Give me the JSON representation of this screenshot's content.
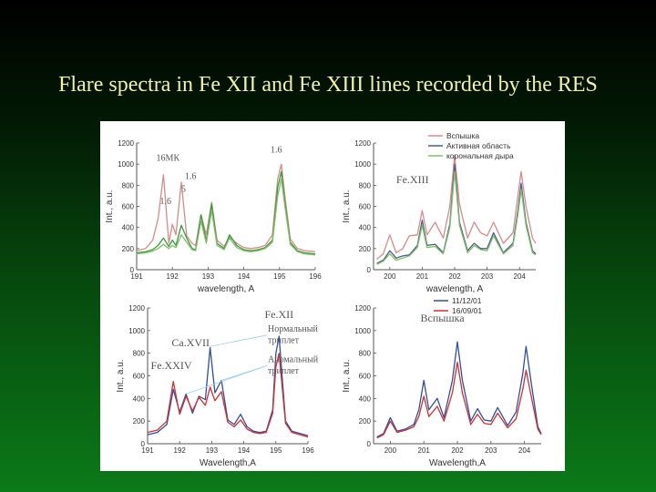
{
  "slide": {
    "title": "Flare spectra in Fe XII and Fe XIII lines recorded by the RES"
  },
  "colors": {
    "background_top": "#000000",
    "background_bottom": "#0b7a18",
    "title_text": "#f2f2a0",
    "flare": "#d98a8a",
    "active_region": "#4a5f86",
    "coronal_hole": "#7fbf6a",
    "green_series": "#3a9a3a",
    "series_11_12_01": "#2f4f9f",
    "series_16_09_01": "#d23030"
  },
  "chart_data": [
    {
      "type": "line",
      "panel": "top-left",
      "title": "",
      "xlabel": "wavelength, A",
      "ylabel": "Int., a.u.",
      "xlim": [
        191,
        196
      ],
      "ylim": [
        0,
        1200
      ],
      "xticks": [
        191,
        192,
        193,
        194,
        195,
        196
      ],
      "yticks": [
        0,
        200,
        400,
        600,
        800,
        1000,
        1200
      ],
      "annotations": [
        {
          "text": "16МК",
          "x": 191.55,
          "y": 1030
        },
        {
          "text": "1.6",
          "x": 192.35,
          "y": 860
        },
        {
          "text": "1.6",
          "x": 191.65,
          "y": 620
        },
        {
          "text": "5",
          "x": 192.25,
          "y": 740
        },
        {
          "text": "1.6",
          "x": 194.75,
          "y": 1110
        }
      ],
      "series": [
        {
          "color_key": "flare",
          "x": [
            191.0,
            191.25,
            191.45,
            191.6,
            191.75,
            191.9,
            192.0,
            192.1,
            192.25,
            192.4,
            192.55,
            192.65,
            192.8,
            192.95,
            193.1,
            193.25,
            193.45,
            193.6,
            193.8,
            194.0,
            194.2,
            194.4,
            194.6,
            194.8,
            194.95,
            195.05,
            195.15,
            195.3,
            195.5,
            195.7,
            196.0
          ],
          "y": [
            180,
            200,
            280,
            480,
            900,
            250,
            430,
            330,
            830,
            320,
            250,
            230,
            520,
            330,
            640,
            280,
            220,
            310,
            250,
            210,
            200,
            210,
            230,
            330,
            860,
            1000,
            700,
            290,
            200,
            180,
            170
          ]
        },
        {
          "color_key": "green_series",
          "x": [
            191.0,
            191.25,
            191.45,
            191.6,
            191.75,
            191.9,
            192.0,
            192.1,
            192.25,
            192.4,
            192.55,
            192.65,
            192.8,
            192.95,
            193.1,
            193.25,
            193.45,
            193.6,
            193.8,
            194.0,
            194.2,
            194.4,
            194.6,
            194.8,
            194.95,
            195.05,
            195.15,
            195.3,
            195.5,
            195.7,
            196.0
          ],
          "y": [
            160,
            170,
            190,
            230,
            300,
            220,
            280,
            230,
            420,
            300,
            200,
            190,
            520,
            270,
            620,
            250,
            200,
            330,
            230,
            190,
            180,
            190,
            210,
            280,
            780,
            930,
            640,
            260,
            180,
            160,
            150
          ]
        },
        {
          "color_key": "coronal_hole",
          "x": [
            191.0,
            191.25,
            191.45,
            191.6,
            191.75,
            191.9,
            192.0,
            192.1,
            192.25,
            192.4,
            192.55,
            192.65,
            192.8,
            192.95,
            193.1,
            193.25,
            193.45,
            193.6,
            193.8,
            194.0,
            194.2,
            194.4,
            194.6,
            194.8,
            194.95,
            195.05,
            195.15,
            195.3,
            195.5,
            195.7,
            196.0
          ],
          "y": [
            150,
            160,
            175,
            200,
            240,
            200,
            230,
            210,
            330,
            260,
            190,
            180,
            460,
            250,
            560,
            230,
            190,
            300,
            210,
            180,
            170,
            180,
            200,
            260,
            700,
            860,
            600,
            240,
            170,
            150,
            140
          ]
        }
      ]
    },
    {
      "type": "line",
      "panel": "top-right",
      "title": "",
      "xlabel": "wavelength, A",
      "ylabel": "Int., a.u.",
      "xlim": [
        199.5,
        204.5
      ],
      "ylim": [
        0,
        1200
      ],
      "xticks": [
        200,
        201,
        202,
        203,
        204
      ],
      "yticks": [
        0,
        200,
        400,
        600,
        800,
        1000,
        1200
      ],
      "annotations": [
        {
          "text": "Fe.XIII",
          "x": 200.2,
          "y": 820
        }
      ],
      "legend": {
        "position": "top-right",
        "entries": [
          "Вспышка",
          "Активная область",
          "корональная дыра"
        ]
      },
      "series": [
        {
          "name": "Вспышка",
          "color_key": "flare",
          "x": [
            199.6,
            199.8,
            200.0,
            200.2,
            200.4,
            200.6,
            200.85,
            201.0,
            201.15,
            201.4,
            201.65,
            201.85,
            202.0,
            202.15,
            202.4,
            202.6,
            202.8,
            203.0,
            203.2,
            203.5,
            203.8,
            203.95,
            204.05,
            204.2,
            204.4,
            204.5
          ],
          "y": [
            100,
            150,
            330,
            160,
            200,
            320,
            330,
            560,
            330,
            450,
            300,
            600,
            1080,
            620,
            300,
            450,
            350,
            320,
            450,
            250,
            350,
            700,
            930,
            600,
            300,
            250
          ]
        },
        {
          "name": "Активная область",
          "color_key": "active_region",
          "x": [
            199.6,
            199.8,
            200.0,
            200.2,
            200.4,
            200.6,
            200.85,
            201.0,
            201.15,
            201.4,
            201.65,
            201.85,
            202.0,
            202.15,
            202.4,
            202.6,
            202.8,
            203.0,
            203.2,
            203.5,
            203.8,
            203.95,
            204.05,
            204.2,
            204.4,
            204.5
          ],
          "y": [
            60,
            90,
            180,
            110,
            130,
            140,
            230,
            470,
            230,
            240,
            160,
            430,
            1000,
            450,
            180,
            250,
            200,
            200,
            350,
            160,
            250,
            560,
            820,
            450,
            180,
            150
          ]
        },
        {
          "name": "корональная дыра",
          "color_key": "coronal_hole",
          "x": [
            199.6,
            199.8,
            200.0,
            200.2,
            200.4,
            200.6,
            200.85,
            201.0,
            201.15,
            201.4,
            201.65,
            201.85,
            202.0,
            202.15,
            202.4,
            202.6,
            202.8,
            203.0,
            203.2,
            203.5,
            203.8,
            203.95,
            204.05,
            204.2,
            204.4,
            204.5
          ],
          "y": [
            50,
            80,
            150,
            90,
            110,
            130,
            210,
            420,
            210,
            220,
            150,
            400,
            930,
            420,
            160,
            230,
            190,
            180,
            320,
            150,
            230,
            520,
            760,
            420,
            160,
            140
          ]
        }
      ]
    },
    {
      "type": "line",
      "panel": "bottom-left",
      "title": "",
      "xlabel": "Wavelength,A",
      "ylabel": "Int., a.u.",
      "xlim": [
        191,
        196
      ],
      "ylim": [
        0,
        1200
      ],
      "xticks": [
        191,
        192,
        193,
        194,
        195,
        196
      ],
      "yticks": [
        0,
        200,
        400,
        600,
        800,
        1000,
        1200
      ],
      "annotations": [
        {
          "text": "Ca.XVII",
          "x": 191.75,
          "y": 860
        },
        {
          "text": "Fe.XXIV",
          "x": 191.1,
          "y": 660
        },
        {
          "text": "Fe.XII",
          "x": 194.65,
          "y": 1110
        },
        {
          "text": "Нормальный",
          "x": 194.75,
          "y": 990
        },
        {
          "text": "триплет",
          "x": 194.75,
          "y": 890
        },
        {
          "text": "Аномальный",
          "x": 194.75,
          "y": 720
        },
        {
          "text": "триплет",
          "x": 194.75,
          "y": 620
        }
      ],
      "series": [
        {
          "color_key": "series_11_12_01",
          "x": [
            191.0,
            191.3,
            191.6,
            191.8,
            192.0,
            192.2,
            192.4,
            192.6,
            192.8,
            192.95,
            193.1,
            193.3,
            193.5,
            193.7,
            193.9,
            194.1,
            194.3,
            194.5,
            194.7,
            194.9,
            195.0,
            195.1,
            195.3,
            195.5,
            195.75,
            196.0
          ],
          "y": [
            80,
            100,
            170,
            480,
            280,
            440,
            270,
            420,
            390,
            850,
            450,
            560,
            210,
            170,
            260,
            150,
            110,
            100,
            110,
            300,
            800,
            950,
            200,
            110,
            90,
            70
          ]
        },
        {
          "color_key": "series_16_09_01",
          "x": [
            191.0,
            191.3,
            191.6,
            191.8,
            192.0,
            192.2,
            192.4,
            192.6,
            192.8,
            192.95,
            193.1,
            193.3,
            193.5,
            193.7,
            193.9,
            194.1,
            194.3,
            194.5,
            194.7,
            194.9,
            195.0,
            195.1,
            195.3,
            195.5,
            195.75,
            196.0
          ],
          "y": [
            100,
            120,
            200,
            550,
            260,
            420,
            290,
            410,
            340,
            500,
            380,
            460,
            190,
            150,
            210,
            130,
            100,
            90,
            100,
            270,
            680,
            800,
            180,
            100,
            80,
            60
          ]
        }
      ]
    },
    {
      "type": "line",
      "panel": "bottom-right",
      "title": "",
      "xlabel": "Wavelength,A",
      "ylabel": "Int., a.u.",
      "xlim": [
        199.5,
        204.5
      ],
      "ylim": [
        0,
        1200
      ],
      "xticks": [
        200,
        201,
        202,
        203,
        204
      ],
      "yticks": [
        0,
        200,
        400,
        600,
        800,
        1000,
        1200
      ],
      "annotations": [
        {
          "text": "Вспышка",
          "x": 200.9,
          "y": 1080
        }
      ],
      "legend": {
        "position": "top-right",
        "entries": [
          "11/12/01",
          "16/09/01"
        ]
      },
      "series": [
        {
          "name": "11/12/01",
          "color_key": "series_11_12_01",
          "x": [
            199.6,
            199.8,
            200.0,
            200.2,
            200.45,
            200.7,
            200.85,
            201.0,
            201.15,
            201.4,
            201.6,
            201.85,
            202.0,
            202.15,
            202.4,
            202.6,
            202.8,
            203.0,
            203.2,
            203.5,
            203.75,
            203.95,
            204.05,
            204.2,
            204.4,
            204.5
          ],
          "y": [
            60,
            90,
            230,
            110,
            130,
            170,
            300,
            560,
            300,
            400,
            230,
            560,
            900,
            560,
            200,
            310,
            210,
            200,
            320,
            160,
            280,
            620,
            860,
            540,
            150,
            90
          ]
        },
        {
          "name": "16/09/01",
          "color_key": "series_16_09_01",
          "x": [
            199.6,
            199.8,
            200.0,
            200.2,
            200.45,
            200.7,
            200.85,
            201.0,
            201.15,
            201.4,
            201.6,
            201.85,
            202.0,
            202.15,
            202.4,
            202.6,
            202.8,
            203.0,
            203.2,
            203.5,
            203.75,
            203.95,
            204.05,
            204.2,
            204.4,
            204.5
          ],
          "y": [
            50,
            80,
            200,
            100,
            120,
            150,
            240,
            420,
            240,
            330,
            200,
            450,
            720,
            450,
            170,
            260,
            180,
            170,
            270,
            140,
            220,
            480,
            650,
            420,
            130,
            80
          ]
        }
      ]
    }
  ]
}
